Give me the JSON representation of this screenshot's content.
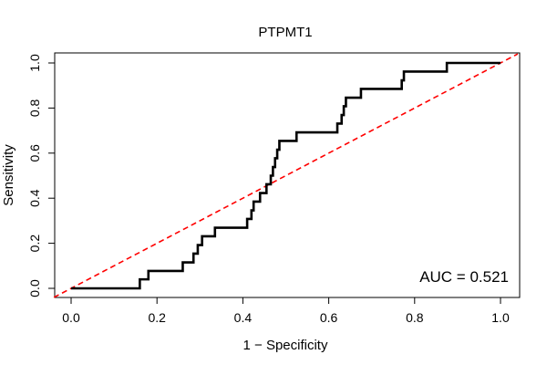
{
  "chart_data": {
    "type": "line",
    "title": "PTPMT1",
    "xlabel": "1 − Specificity",
    "ylabel": "Sensitivity",
    "xlim": [
      0,
      1
    ],
    "ylim": [
      0,
      1
    ],
    "x_ticks": [
      "0.0",
      "0.2",
      "0.4",
      "0.6",
      "0.8",
      "1.0"
    ],
    "y_ticks": [
      "0.0",
      "0.2",
      "0.4",
      "0.6",
      "0.8",
      "1.0"
    ],
    "grid": false,
    "legend": "none",
    "annotation": "AUC = 0.521",
    "series": [
      {
        "color": "#000000",
        "style": "solid",
        "points": [
          [
            0.0,
            0.0
          ],
          [
            0.16,
            0.0
          ],
          [
            0.16,
            0.04
          ],
          [
            0.18,
            0.04
          ],
          [
            0.18,
            0.077
          ],
          [
            0.26,
            0.077
          ],
          [
            0.26,
            0.115
          ],
          [
            0.285,
            0.115
          ],
          [
            0.285,
            0.154
          ],
          [
            0.295,
            0.154
          ],
          [
            0.295,
            0.192
          ],
          [
            0.305,
            0.192
          ],
          [
            0.305,
            0.231
          ],
          [
            0.335,
            0.231
          ],
          [
            0.335,
            0.269
          ],
          [
            0.41,
            0.269
          ],
          [
            0.41,
            0.308
          ],
          [
            0.42,
            0.308
          ],
          [
            0.42,
            0.346
          ],
          [
            0.425,
            0.346
          ],
          [
            0.425,
            0.385
          ],
          [
            0.44,
            0.385
          ],
          [
            0.44,
            0.423
          ],
          [
            0.455,
            0.423
          ],
          [
            0.455,
            0.462
          ],
          [
            0.465,
            0.462
          ],
          [
            0.465,
            0.5
          ],
          [
            0.47,
            0.5
          ],
          [
            0.47,
            0.538
          ],
          [
            0.475,
            0.538
          ],
          [
            0.475,
            0.577
          ],
          [
            0.48,
            0.577
          ],
          [
            0.48,
            0.615
          ],
          [
            0.485,
            0.615
          ],
          [
            0.485,
            0.654
          ],
          [
            0.525,
            0.654
          ],
          [
            0.525,
            0.692
          ],
          [
            0.62,
            0.692
          ],
          [
            0.62,
            0.731
          ],
          [
            0.63,
            0.731
          ],
          [
            0.63,
            0.769
          ],
          [
            0.635,
            0.769
          ],
          [
            0.635,
            0.808
          ],
          [
            0.64,
            0.808
          ],
          [
            0.64,
            0.846
          ],
          [
            0.675,
            0.846
          ],
          [
            0.675,
            0.885
          ],
          [
            0.77,
            0.885
          ],
          [
            0.77,
            0.923
          ],
          [
            0.775,
            0.923
          ],
          [
            0.775,
            0.962
          ],
          [
            0.875,
            0.962
          ],
          [
            0.875,
            1.0
          ],
          [
            1.0,
            1.0
          ]
        ]
      },
      {
        "color": "#ff0000",
        "style": "dashed",
        "points": [
          [
            0,
            0
          ],
          [
            1,
            1
          ]
        ]
      }
    ]
  }
}
